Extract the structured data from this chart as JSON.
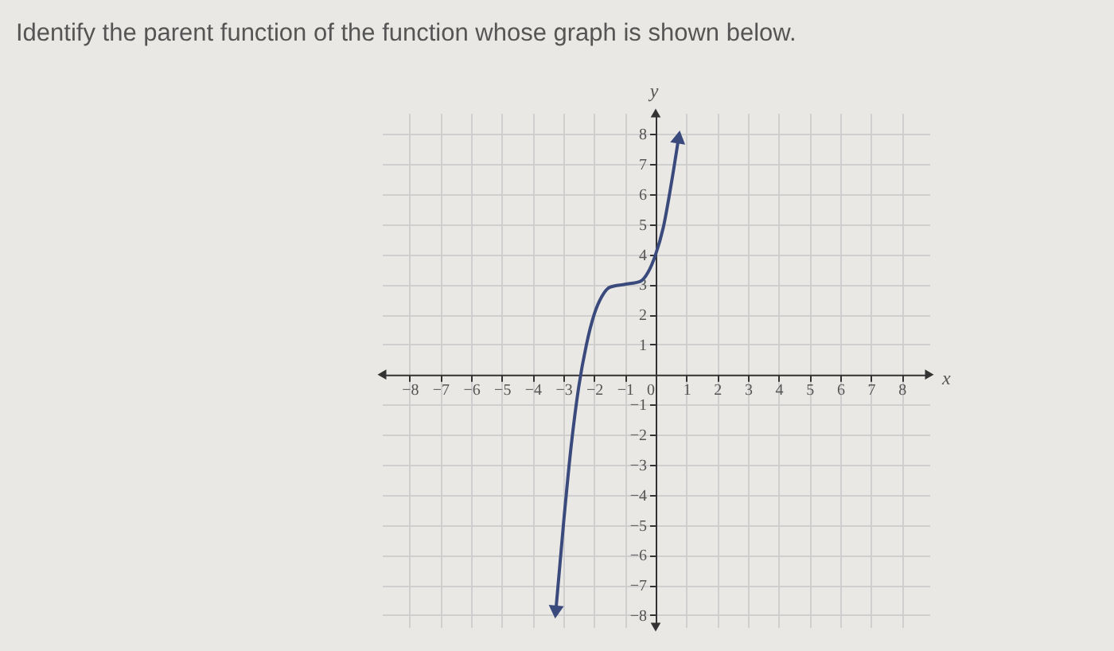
{
  "chart_data": {
    "type": "line",
    "title": "Identify the parent function of the function whose graph is shown below.",
    "xlabel": "x",
    "ylabel": "y",
    "x": [
      -3.25,
      -3,
      -2.75,
      -2.5,
      -2.25,
      -2,
      -1.75,
      -1.5,
      -1,
      -0.5,
      -0.25,
      0,
      0.25,
      0.5,
      0.75
    ],
    "series": [
      {
        "color": "#3a4a7c",
        "values": [
          -7.9,
          -5,
          -2.4,
          -0.4,
          1.0,
          2.0,
          2.6,
          2.9,
          3.0,
          3.1,
          3.4,
          4.0,
          4.9,
          6.3,
          7.9
        ]
      }
    ],
    "xlim": [
      -8.9,
      8.9
    ],
    "ylim": [
      -8.4,
      8.7
    ],
    "xticks": [
      -8,
      -7,
      -6,
      -5,
      -4,
      -3,
      -2,
      -1,
      0,
      1,
      2,
      3,
      4,
      5,
      6,
      7,
      8
    ],
    "yticks": [
      -8,
      -7,
      -6,
      -5,
      -4,
      -3,
      -2,
      -1,
      1,
      2,
      3,
      4,
      5,
      6,
      7,
      8
    ],
    "grid": true,
    "line_style": "solid"
  }
}
